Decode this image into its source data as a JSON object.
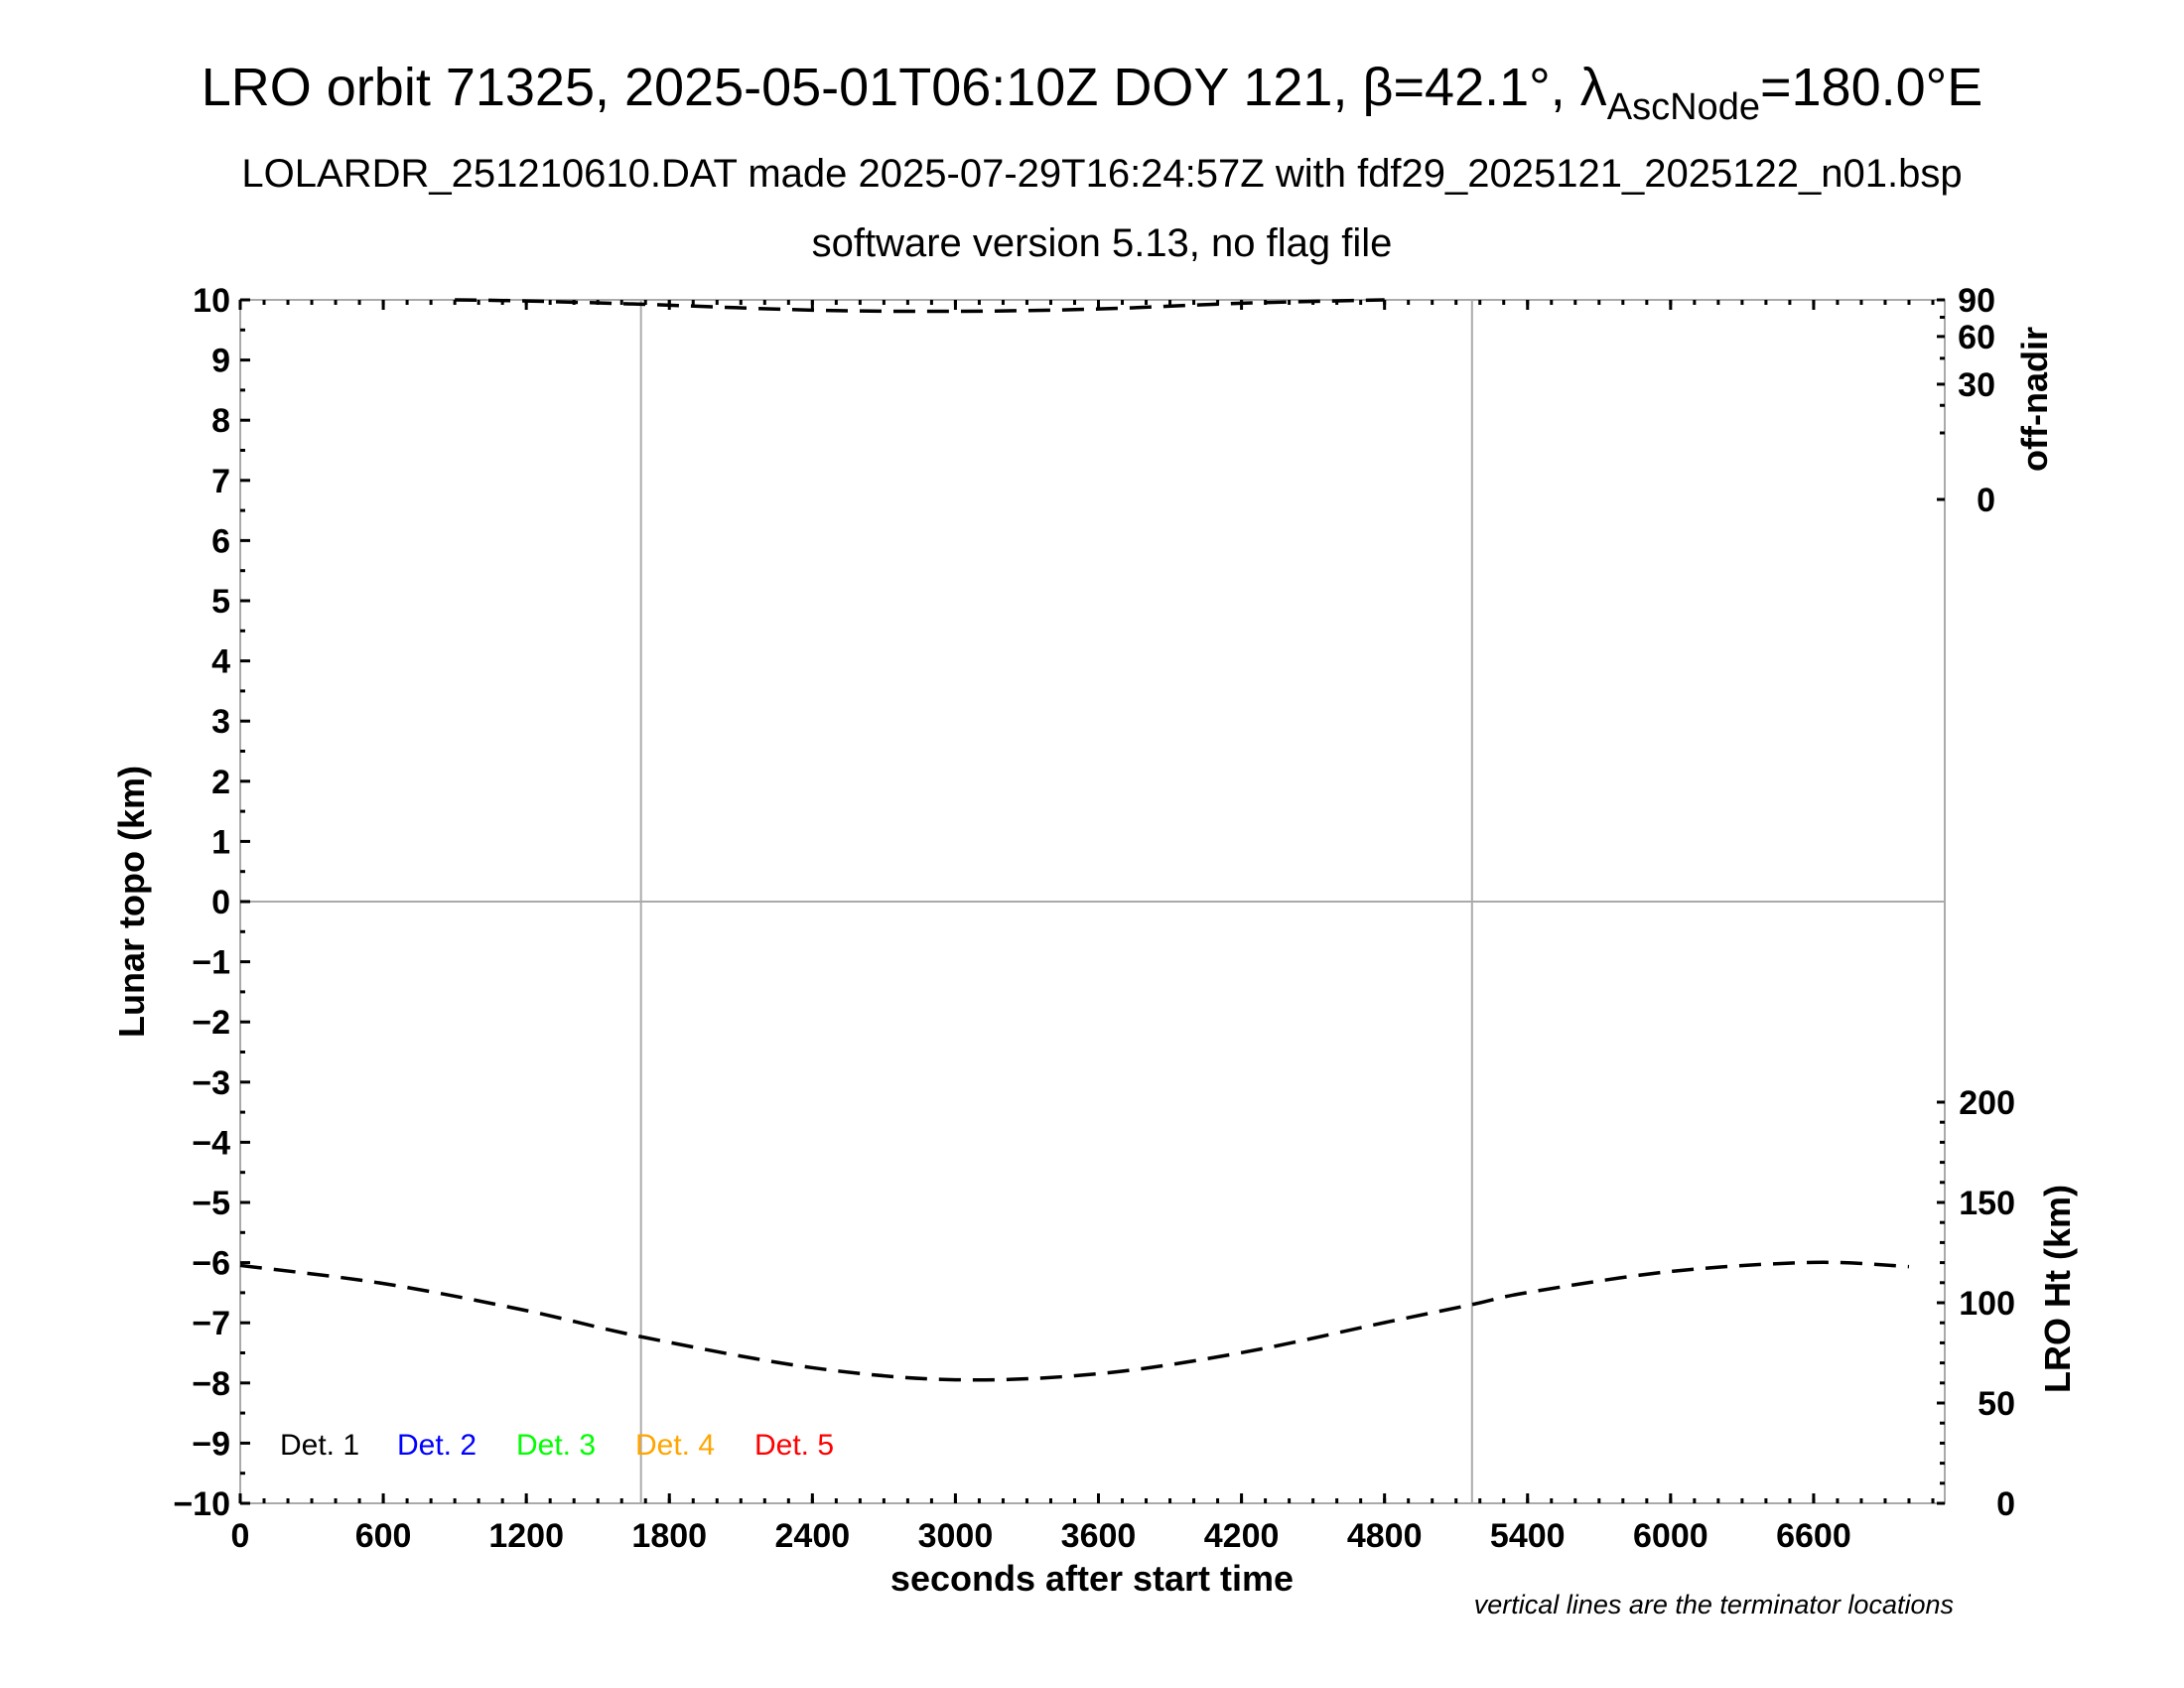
{
  "chart_data": {
    "type": "line",
    "title": "LRO orbit 71325, 2025-05-01T06:10Z DOY 121, β=42.1°, λ",
    "title_sub": "AscNode",
    "title_tail": "=180.0°E",
    "subtitle": "LOLARDR_251210610.DAT made 2025-07-29T16:24:57Z with fdf29_2025121_2025122_n01.bsp",
    "subtitle2": "software version 5.13, no flag file",
    "xlabel": "seconds after start time",
    "ylabel": "Lunar topo (km)",
    "y2label_top": "off-nadir",
    "y2label_bottom": "LRO Ht (km)",
    "footnote": "vertical lines are the terminator locations",
    "xlim": [
      0,
      7150
    ],
    "ylim": [
      -10,
      10
    ],
    "x_ticks": [
      "0",
      "600",
      "1200",
      "1800",
      "2400",
      "3000",
      "3600",
      "4200",
      "4800",
      "5400",
      "6000",
      "6600"
    ],
    "y_ticks": [
      "−10",
      "−9",
      "−8",
      "−7",
      "−6",
      "−5",
      "−4",
      "−3",
      "−2",
      "−1",
      "0",
      "1",
      "2",
      "3",
      "4",
      "5",
      "6",
      "7",
      "8",
      "9",
      "10"
    ],
    "offnadir_ticks": [
      "0",
      "30",
      "60",
      "90"
    ],
    "offnadir_scale": "sqrt",
    "height_ticks": [
      "0",
      "50",
      "100",
      "150",
      "200"
    ],
    "terminators_s": [
      1681,
      5167
    ],
    "legend": [
      {
        "label": "Det. 1",
        "color": "#000000"
      },
      {
        "label": "Det. 2",
        "color": "#0000ff"
      },
      {
        "label": "Det. 3",
        "color": "#00ff00"
      },
      {
        "label": "Det. 4",
        "color": "#ffa500"
      },
      {
        "label": "Det. 5",
        "color": "#ff0000"
      }
    ],
    "legend_placement": "bottom-left",
    "series": [
      {
        "name": "LRO Ht (km)",
        "style": "dashed",
        "x": [
          0,
          600,
          1200,
          1700,
          2400,
          3000,
          3600,
          4200,
          4800,
          5167,
          5400,
          6000,
          6600,
          7000
        ],
        "y": [
          118.6,
          109.6,
          96.1,
          82.6,
          67.6,
          61.6,
          64.6,
          75.1,
          90.1,
          99.1,
          105.1,
          115.6,
          120.1,
          118.0
        ]
      },
      {
        "name": "off-nadir",
        "style": "dashed",
        "x": [
          900,
          1200,
          1700,
          2400,
          3000,
          3600,
          4200,
          4800
        ],
        "y": [
          90,
          89,
          86,
          81,
          80,
          82,
          87,
          90
        ]
      }
    ]
  }
}
